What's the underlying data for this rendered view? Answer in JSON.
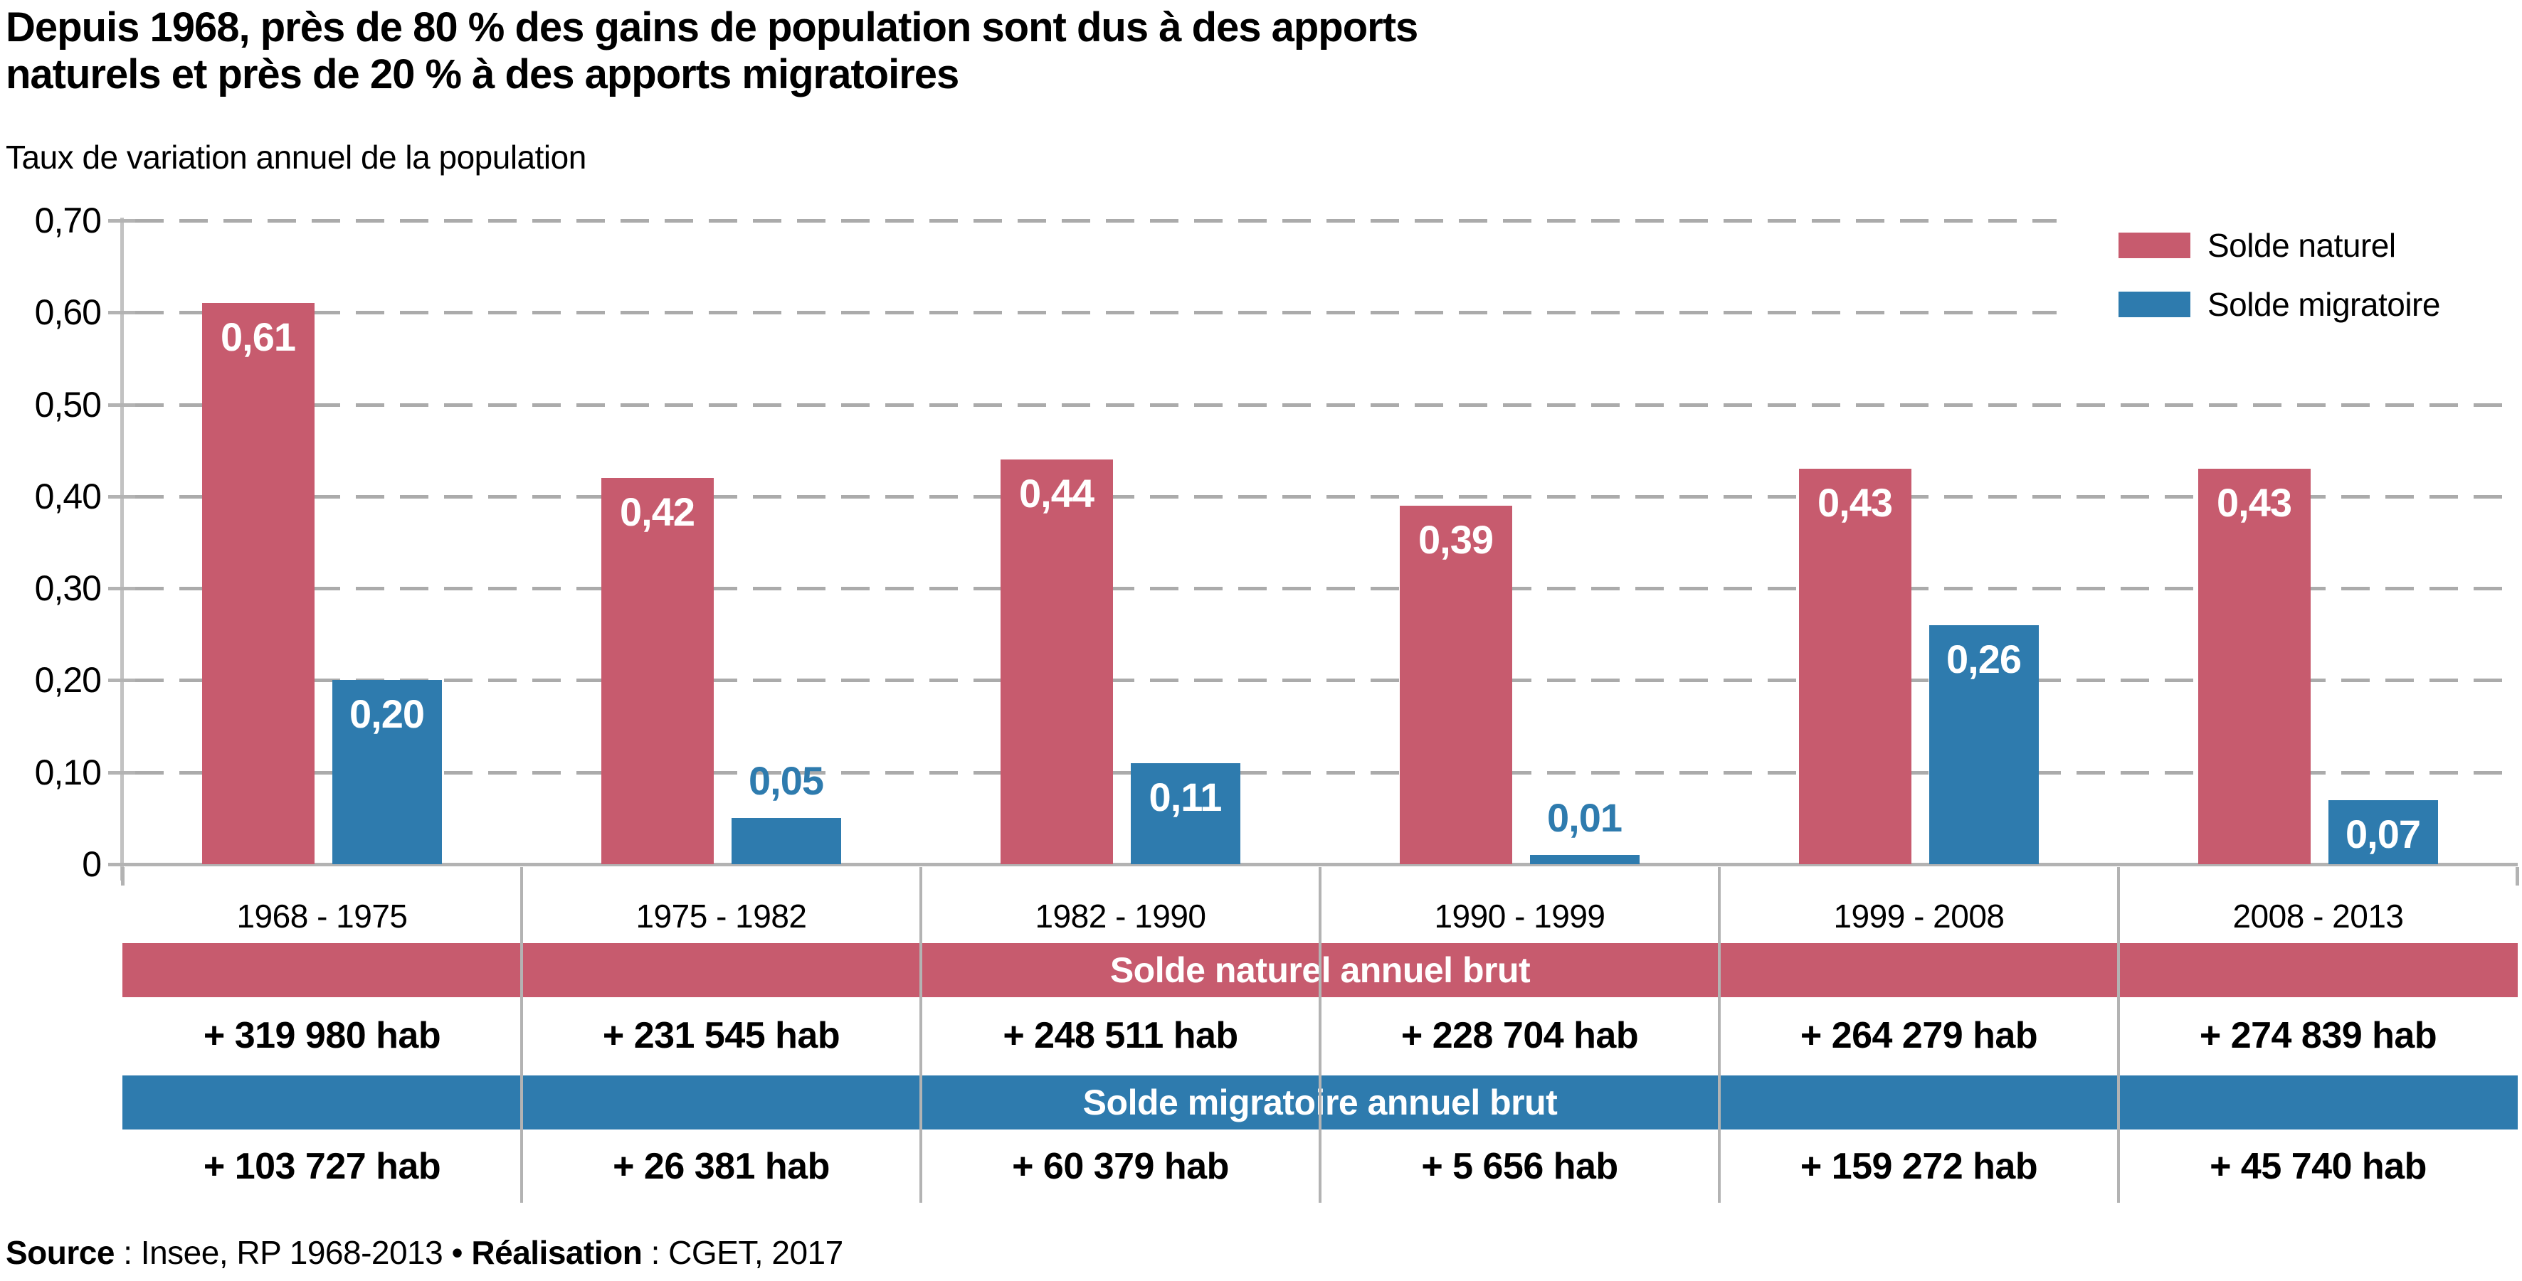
{
  "title_line1": "Depuis 1968, près de 80 % des gains de population sont dus à des apports",
  "title_line2": "naturels et près de 20 % à des apports migratoires",
  "subtitle": "Taux de variation annuel de la population",
  "legend": {
    "items": [
      {
        "label": "Solde naturel",
        "color": "#c75b6e"
      },
      {
        "label": "Solde migratoire",
        "color": "#2e7bae"
      }
    ]
  },
  "chart_data": {
    "type": "bar",
    "title": "Taux de variation annuel de la population",
    "categories": [
      "1968 - 1975",
      "1975 - 1982",
      "1982 - 1990",
      "1990 - 1999",
      "1999 - 2008",
      "2008 - 2013"
    ],
    "series": [
      {
        "name": "Solde naturel",
        "color": "#c75b6e",
        "values": [
          0.61,
          0.42,
          0.44,
          0.39,
          0.43,
          0.43
        ],
        "value_labels": [
          "0,61",
          "0,42",
          "0,44",
          "0,39",
          "0,43",
          "0,43"
        ]
      },
      {
        "name": "Solde migratoire",
        "color": "#2e7bae",
        "values": [
          0.2,
          0.05,
          0.11,
          0.01,
          0.26,
          0.07
        ],
        "value_labels": [
          "0,20",
          "0,05",
          "0,11",
          "0,01",
          "0,26",
          "0,07"
        ]
      }
    ],
    "ylim": [
      0,
      0.7
    ],
    "yticks": [
      {
        "value": 0.7,
        "label": "0,70"
      },
      {
        "value": 0.6,
        "label": "0,60"
      },
      {
        "value": 0.5,
        "label": "0,50"
      },
      {
        "value": 0.4,
        "label": "0,40"
      },
      {
        "value": 0.3,
        "label": "0,30"
      },
      {
        "value": 0.2,
        "label": "0,20"
      },
      {
        "value": 0.1,
        "label": "0,10"
      },
      {
        "value": 0.0,
        "label": "0"
      }
    ],
    "grid": "horizontal-dashed",
    "legend_position": "top-right",
    "bar_label_position": "inside-top, outside-top for small bars"
  },
  "table": {
    "rows": [
      {
        "band_label": "Solde naturel annuel brut",
        "color": "#c75b6e",
        "values": [
          "+ 319 980 hab",
          "+ 231 545 hab",
          "+ 248 511 hab",
          "+ 228 704 hab",
          "+ 264 279 hab",
          "+ 274 839 hab"
        ]
      },
      {
        "band_label": "Solde migratoire annuel brut",
        "color": "#2e7bae",
        "values": [
          "+ 103 727 hab",
          "+ 26 381 hab",
          "+ 60 379 hab",
          "+ 5 656 hab",
          "+ 159 272 hab",
          "+ 45 740 hab"
        ]
      }
    ]
  },
  "source": {
    "label1": "Source",
    "text1": " : Insee, RP 1968-2013 • ",
    "label2": "Réalisation",
    "text2": " : CGET, 2017"
  }
}
